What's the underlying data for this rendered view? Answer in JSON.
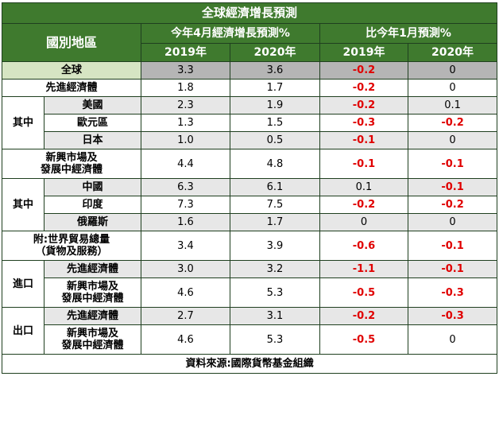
{
  "title": "全球經濟增長預測",
  "header": {
    "region_col": "國別地區",
    "group1": "今年4月經濟增長預測%",
    "group2": "比今年1月預測%",
    "years": [
      "2019年",
      "2020年",
      "2019年",
      "2020年"
    ]
  },
  "groups": {
    "g1": "其中",
    "g2": "其中",
    "g3": "進口",
    "g4": "出口"
  },
  "rows": [
    {
      "label": "全球",
      "v": [
        "3.3",
        "3.6",
        "-0.2",
        "0"
      ]
    },
    {
      "label": "先進經濟體",
      "v": [
        "1.8",
        "1.7",
        "-0.2",
        "0"
      ]
    },
    {
      "label": "美國",
      "v": [
        "2.3",
        "1.9",
        "-0.2",
        "0.1"
      ]
    },
    {
      "label": "歐元區",
      "v": [
        "1.3",
        "1.5",
        "-0.3",
        "-0.2"
      ]
    },
    {
      "label": "日本",
      "v": [
        "1.0",
        "0.5",
        "-0.1",
        "0"
      ]
    },
    {
      "label": "新興市場及\n發展中經濟體",
      "v": [
        "4.4",
        "4.8",
        "-0.1",
        "-0.1"
      ]
    },
    {
      "label": "中國",
      "v": [
        "6.3",
        "6.1",
        "0.1",
        "-0.1"
      ]
    },
    {
      "label": "印度",
      "v": [
        "7.3",
        "7.5",
        "-0.2",
        "-0.2"
      ]
    },
    {
      "label": "俄羅斯",
      "v": [
        "1.6",
        "1.7",
        "0",
        "0"
      ]
    },
    {
      "label": "附:世界貿易總量\n（貨物及服務）",
      "v": [
        "3.4",
        "3.9",
        "-0.6",
        "-0.1"
      ]
    },
    {
      "label": "先進經濟體",
      "v": [
        "3.0",
        "3.2",
        "-1.1",
        "-0.1"
      ]
    },
    {
      "label": "新興市場及\n發展中經濟體",
      "v": [
        "4.6",
        "5.3",
        "-0.5",
        "-0.3"
      ]
    },
    {
      "label": "先進經濟體",
      "v": [
        "2.7",
        "3.1",
        "-0.2",
        "-0.3"
      ]
    },
    {
      "label": "新興市場及\n發展中經濟體",
      "v": [
        "4.6",
        "5.3",
        "-0.5",
        "0"
      ]
    }
  ],
  "footer": "資料來源:國際貨幣基金組織",
  "colors": {
    "header_bg": "#3f7a2e",
    "negative": "#e00000",
    "row_alt": "#e7e7e7"
  }
}
